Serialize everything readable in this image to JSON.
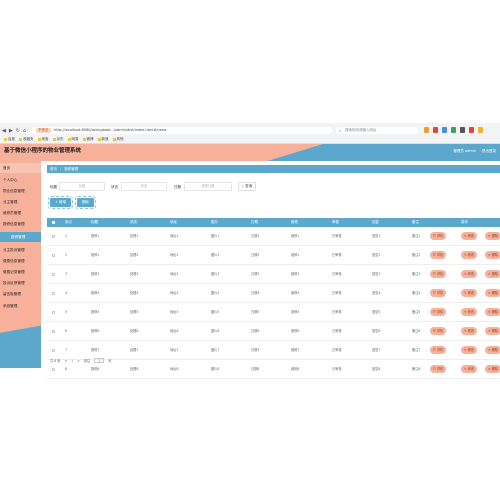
{
  "browser": {
    "url_badge": "不安全",
    "url": "http://localhost:8080/springboot.../admin/dist/index.html#/news",
    "search_placeholder": "搜索网页或输入网址",
    "nav_icons": [
      "back-icon",
      "forward-icon",
      "reload-icon",
      "home-icon"
    ],
    "bookmarks": [
      "百度",
      "收藏夹",
      "淘宝",
      "京东",
      "网易",
      "微博",
      "新浪",
      "其他"
    ],
    "ext_colors": [
      "#e8a03a",
      "#d94a3a",
      "#4a90d9",
      "#3aa35a",
      "#555555",
      "#d94a3a",
      "#f0b030"
    ]
  },
  "app": {
    "title": "基于微信小程序的物业管理系统",
    "user": "管理员 admin",
    "logout": "退出登录"
  },
  "sidebar": {
    "items": [
      {
        "label": "首页"
      },
      {
        "label": "个人中心"
      },
      {
        "label": "物业信息管理"
      },
      {
        "label": "业主管理"
      },
      {
        "label": "维修员管理"
      },
      {
        "label": "报修信息管理"
      },
      {
        "label": "报修管理"
      },
      {
        "label": "业主投诉管理"
      },
      {
        "label": "缴费信息管理"
      },
      {
        "label": "缴费记录管理"
      },
      {
        "label": "投诉反馈管理"
      },
      {
        "label": "留言板管理"
      },
      {
        "label": "系统管理"
      }
    ]
  },
  "breadcrumb": {
    "home": "首页",
    "current": "报修管理"
  },
  "filters": {
    "f1_label": "标题",
    "f1_placeholder": "标题",
    "f2_label": "状态",
    "f2_placeholder": "状态",
    "f3_label": "日期",
    "f3_placeholder": "报修日期",
    "query": "查询"
  },
  "actions": {
    "add": "+ 新增",
    "delete": "删除"
  },
  "table": {
    "headers": [
      "索引",
      "标题",
      "状态",
      "地址",
      "图片",
      "日期",
      "维修",
      "审核",
      "回复",
      "备注",
      "操作"
    ],
    "rows": [
      [
        "1",
        "报修1",
        "处理1",
        "地址1",
        "图片1",
        "日期1",
        "维修1",
        "已审核",
        "回复1",
        "备注1"
      ],
      [
        "2",
        "报修2",
        "处理2",
        "地址2",
        "图片2",
        "日期2",
        "维修2",
        "已审核",
        "回复2",
        "备注2"
      ],
      [
        "3",
        "报修3",
        "处理3",
        "地址3",
        "图片3",
        "日期3",
        "维修3",
        "已审核",
        "回复3",
        "备注3"
      ],
      [
        "4",
        "报修4",
        "处理4",
        "地址4",
        "图片4",
        "日期4",
        "维修4",
        "已审核",
        "回复4",
        "备注4"
      ],
      [
        "5",
        "报修5",
        "处理5",
        "地址5",
        "图片5",
        "日期5",
        "维修5",
        "已审核",
        "回复5",
        "备注5"
      ],
      [
        "6",
        "报修6",
        "处理6",
        "地址6",
        "图片6",
        "日期6",
        "维修6",
        "已审核",
        "回复6",
        "备注6"
      ],
      [
        "7",
        "报修7",
        "处理7",
        "地址7",
        "图片7",
        "日期7",
        "维修7",
        "已审核",
        "回复7",
        "备注7"
      ],
      [
        "8",
        "报修8",
        "处理8",
        "地址8",
        "图片8",
        "日期8",
        "维修8",
        "已审核",
        "回复8",
        "备注8"
      ]
    ],
    "op_buttons": [
      "详情",
      "修改",
      "删除"
    ]
  },
  "pager": {
    "total": "共 8 条",
    "prev": "<",
    "page": "1",
    "next": ">",
    "goto_label": "前往",
    "goto_value": "1",
    "unit": "页"
  },
  "colors": {
    "peach": "#f7b19a",
    "blue": "#5ca8cc"
  }
}
